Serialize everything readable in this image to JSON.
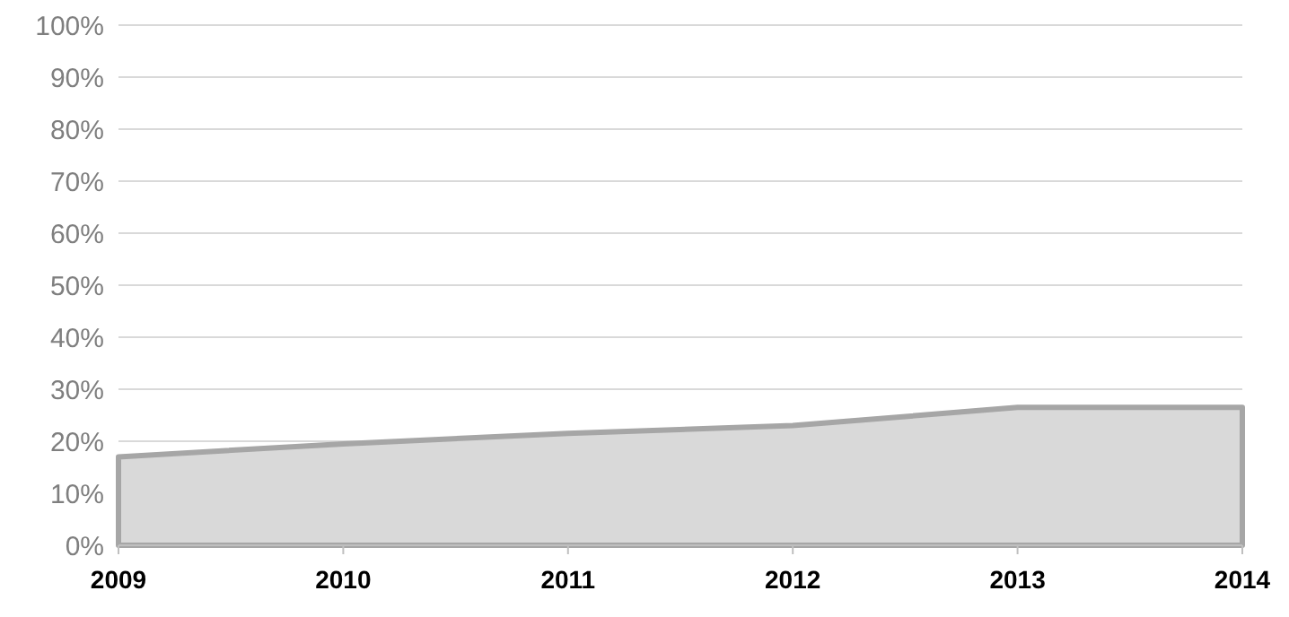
{
  "chart_data": {
    "type": "area",
    "categories": [
      "2009",
      "2010",
      "2011",
      "2012",
      "2013",
      "2014"
    ],
    "series": [
      {
        "color": "#d9d9d9",
        "values": [
          17,
          19.5,
          21.5,
          23,
          26.5,
          26.5
        ]
      }
    ],
    "ylim": [
      0,
      100
    ],
    "yticks": [
      {
        "value": 0,
        "label": "0%"
      },
      {
        "value": 10,
        "label": "10%"
      },
      {
        "value": 20,
        "label": "20%"
      },
      {
        "value": 30,
        "label": "30%"
      },
      {
        "value": 40,
        "label": "40%"
      },
      {
        "value": 50,
        "label": "50%"
      },
      {
        "value": 60,
        "label": "60%"
      },
      {
        "value": 70,
        "label": "70%"
      },
      {
        "value": 80,
        "label": "80%"
      },
      {
        "value": 90,
        "label": "90%"
      },
      {
        "value": 100,
        "label": "100%"
      }
    ],
    "grid": "y"
  }
}
